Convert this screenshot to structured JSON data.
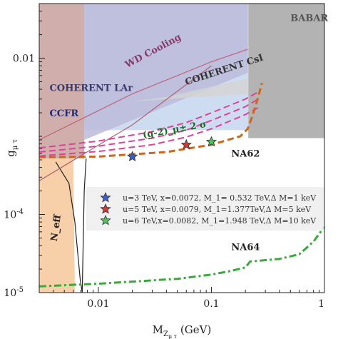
{
  "chart_data": {
    "type": "line",
    "xscale": "log",
    "yscale": "log",
    "xlim": [
      0.003,
      1.0
    ],
    "ylim": [
      1e-05,
      0.05
    ],
    "xlabel": "M_{Z_{μτ}} (GeV)",
    "ylabel": "g_{μτ}",
    "xticks": [
      {
        "value": 0.01,
        "label": "0.01"
      },
      {
        "value": 0.1,
        "label": "0.1"
      },
      {
        "value": 1.0,
        "label": "1"
      }
    ],
    "yticks": [
      {
        "value": 1e-05,
        "label": "10",
        "sup": "-5"
      },
      {
        "value": 0.0001,
        "label": "10",
        "sup": "-4"
      },
      {
        "value": 0.01,
        "label": "0.01"
      }
    ],
    "regions": [
      {
        "name": "BABAR",
        "color": "#a6a6a6",
        "x": [
          0.212,
          1.0,
          1.0,
          0.212
        ],
        "y": [
          0.05,
          0.05,
          0.00095,
          0.00095
        ]
      },
      {
        "name": "CCFR",
        "color": "#c6d6ee",
        "x": [
          0.0075,
          0.212,
          0.212,
          0.0075
        ],
        "y": [
          0.05,
          0.05,
          0.0012,
          0.0012
        ]
      },
      {
        "name": "WD Cooling",
        "color": "#bbbbdb",
        "x": [
          0.0075,
          0.21,
          0.21,
          0.0075
        ],
        "y": [
          0.05,
          0.05,
          0.0065,
          0.0009
        ]
      },
      {
        "name": "COHERENT LAr",
        "color": "#c8a09c",
        "x": [
          0.003,
          0.0075,
          0.0075,
          0.003
        ],
        "y": [
          0.05,
          0.05,
          0.00052,
          0.00052
        ]
      },
      {
        "name": "COHERENT CsI",
        "color": "#d4d4d4",
        "x": [
          0.02,
          0.21,
          0.21,
          0.04
        ],
        "y": [
          0.0028,
          0.0035,
          0.0055,
          0.0032
        ]
      },
      {
        "name": "N_eff",
        "color": "#f6c79a",
        "x": [
          0.003,
          0.006,
          0.0062,
          0.003
        ],
        "y": [
          0.00052,
          0.00052,
          1e-05,
          1e-05
        ]
      }
    ],
    "boundaries": [
      {
        "name": "N_eff edge",
        "color": "#222222",
        "x": [
          0.0042,
          0.0055,
          0.0062,
          0.0066,
          0.0069,
          0.0072,
          0.0075,
          0.0078
        ],
        "y": [
          0.00047,
          0.00025,
          8e-05,
          3e-05,
          1.5e-05,
          1e-05,
          0.0002,
          0.00052
        ]
      },
      {
        "name": "WD Cooling edge",
        "color": "#c0607a",
        "x": [
          0.003,
          0.02,
          0.1,
          0.21
        ],
        "y": [
          0.0009,
          0.0035,
          0.009,
          0.013
        ]
      },
      {
        "name": "COHERENT LAr diagonal",
        "color": "#b06070",
        "x": [
          0.003,
          0.0075,
          0.02,
          0.1
        ],
        "y": [
          0.00027,
          0.0006,
          0.0014,
          0.008
        ]
      }
    ],
    "series": [
      {
        "name": "(g-2)_μ ± 2 σ",
        "color": "#e0409a",
        "style": "dashed",
        "x": [
          0.003,
          0.01,
          0.03,
          0.06,
          0.1,
          0.2,
          0.27
        ],
        "y": [
          0.00063,
          0.00075,
          0.00095,
          0.0012,
          0.0016,
          0.0024,
          0.0031
        ]
      },
      {
        "name": "(g-2)_μ lower",
        "color": "#e0409a",
        "style": "dashed",
        "x": [
          0.003,
          0.01,
          0.03,
          0.06,
          0.1,
          0.2,
          0.27
        ],
        "y": [
          0.00056,
          0.00064,
          0.00078,
          0.00098,
          0.00125,
          0.0019,
          0.0024
        ]
      },
      {
        "name": "(g-2)_μ upper",
        "color": "#e0409a",
        "style": "dashed",
        "x": [
          0.003,
          0.01,
          0.03,
          0.06,
          0.1,
          0.2,
          0.27
        ],
        "y": [
          0.00071,
          0.00087,
          0.00115,
          0.0015,
          0.002,
          0.003,
          0.0038
        ]
      },
      {
        "name": "NA62",
        "color": "#d0661a",
        "style": "dashed",
        "x": [
          0.003,
          0.01,
          0.04,
          0.1,
          0.18,
          0.21,
          0.23,
          0.26,
          0.28
        ],
        "y": [
          0.00054,
          0.00055,
          0.00063,
          0.00078,
          0.001,
          0.00125,
          0.0018,
          0.0032,
          0.0048
        ]
      },
      {
        "name": "NA64",
        "color": "#3aa83a",
        "style": "dashdot",
        "x": [
          0.003,
          0.01,
          0.05,
          0.1,
          0.15,
          0.2,
          0.22,
          0.4,
          0.6,
          0.8,
          1.0
        ],
        "y": [
          1.2e-05,
          1.3e-05,
          1.5e-05,
          1.7e-05,
          1.9e-05,
          2.1e-05,
          2.5e-05,
          2.7e-05,
          3.1e-05,
          4.5e-05,
          7e-05
        ]
      }
    ],
    "points": [
      {
        "x": 0.02,
        "y": 0.00055,
        "color": "#3a5fcd",
        "label": "u=3 TeV, x=0.0072, M_1= 0.532 TeV,Δ M=1 keV"
      },
      {
        "x": 0.06,
        "y": 0.00078,
        "color": "#d23a3a",
        "label": "u=5 TeV, x=0.0079, M_1=1.377TeV,Δ M=5 keV"
      },
      {
        "x": 0.1,
        "y": 0.00085,
        "color": "#4cc35a",
        "label": "u=6 TeV,x=0.0082, M_1=1.948 TeV,Δ M=10 keV"
      }
    ],
    "region_labels": [
      {
        "text": "BABAR",
        "color": "#555555"
      },
      {
        "text": "WD Cooling",
        "color": "#8a3a6a"
      },
      {
        "text": "COHERENT CsI",
        "color": "#333333"
      },
      {
        "text": "COHERENT LAr",
        "color": "#3a3a6a"
      },
      {
        "text": "CCFR",
        "color": "#1f2a7a"
      },
      {
        "text": "(g-2)_μ± 2 σ",
        "color": "#1d6a2a"
      },
      {
        "text": "NA62",
        "color": "#222222"
      },
      {
        "text": "NA64",
        "color": "#222222"
      },
      {
        "text": "N_eff",
        "color": "#222222"
      }
    ],
    "legend_placement": "lower-right (inside)",
    "grid": false
  }
}
